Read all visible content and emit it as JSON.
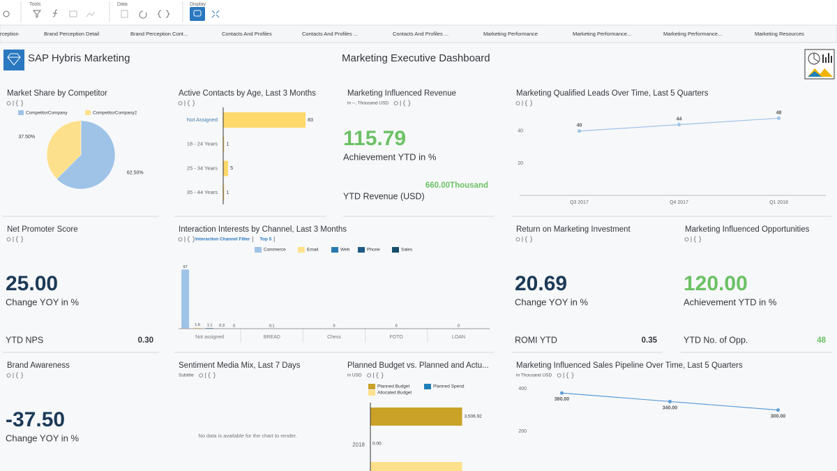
{
  "toolbar": {
    "groups": [
      "Tools",
      "Data",
      "Display"
    ]
  },
  "tabs": [
    "rception",
    "Brand Perception Detail",
    "Brand Perception Cont...",
    "Contacts And Profiles",
    "Contacts And Profiles ...",
    "Contacts And Profiles ...",
    "Marketing Performance",
    "Marketing Performance...",
    "Marketing Performance...",
    "Marketing Resources"
  ],
  "header": {
    "brand": "SAP Hybris Marketing",
    "title": "Marketing Executive Dashboard"
  },
  "tiles": [
    {
      "title": "Market Share by Competitor",
      "chart": {
        "type": "pie",
        "categories": [
          "CompetitorCompany",
          "CompetitorCompany2"
        ],
        "values": [
          62.5,
          37.5
        ],
        "value_labels": [
          "62.50%",
          "37.50%"
        ],
        "colors": [
          "#9fc3e7",
          "#fde08b"
        ]
      }
    },
    {
      "title": "Active Contacts by Age, Last 3 Months",
      "chart": {
        "type": "hbar",
        "categories": [
          "Not Assigned",
          "18 - 24 Years",
          "25 - 34 Years",
          "35 - 44 Years"
        ],
        "values": [
          83,
          1,
          5,
          1
        ],
        "color": "#fdd86b",
        "xlim": [
          0,
          85
        ]
      }
    },
    {
      "title": "Marketing Influenced Revenue",
      "subtitle": "in --, Thousand USD",
      "kpi": {
        "value": "115.79",
        "label": "Achievement YTD in %",
        "color": "#6cc165",
        "footer_label": "YTD Revenue (USD)",
        "footer_value": "660.00Thousand",
        "footer_color": "#6cc165"
      }
    },
    {
      "title": "Marketing Qualified Leads Over Time, Last 5 Quarters",
      "chart": {
        "type": "line",
        "categories": [
          "Q3 2017",
          "Q4 2017",
          "Q1 2018"
        ],
        "values": [
          40,
          44,
          48
        ],
        "color": "#9fc3e7",
        "ylim": [
          0,
          56
        ],
        "yticks": [
          20,
          40
        ]
      }
    },
    {
      "title": "Net Promoter Score",
      "kpi": {
        "value": "25.00",
        "label": "Change YOY in %",
        "color": "#1c3a57",
        "footer_label": "YTD NPS",
        "footer_value": "0.30",
        "footer_color": "#32363a"
      }
    },
    {
      "title": "Interaction Interests by Channel, Last 3 Months",
      "filters": [
        "Interaction Channel Filter",
        "Top 5"
      ],
      "chart": {
        "type": "groupbar",
        "categories": [
          "Not assigned",
          "BREAD",
          "Chess",
          "FOTO",
          "LOAN"
        ],
        "ylim": [
          0,
          110
        ],
        "series": [
          {
            "name": "Commerce",
            "color": "#9fc3e7",
            "values": [
              97,
              0.1,
              0,
              0,
              0
            ]
          },
          {
            "name": "Email",
            "color": "#fde08b",
            "values": [
              1.6,
              null,
              null,
              null,
              null
            ]
          },
          {
            "name": "Web",
            "color": "#2a7ab0",
            "values": [
              1.1,
              null,
              null,
              null,
              null
            ]
          },
          {
            "name": "Phone",
            "color": "#1e5a86",
            "values": [
              0.3,
              null,
              null,
              null,
              null
            ]
          },
          {
            "name": "Sales",
            "color": "#164e6b",
            "values": [
              0,
              null,
              null,
              null,
              null
            ]
          }
        ]
      }
    },
    {
      "title": "Return on Marketing Investment",
      "kpi": {
        "value": "20.69",
        "label": "Change YOY in %",
        "color": "#1c3a57",
        "footer_label": "ROMI YTD",
        "footer_value": "0.35",
        "footer_color": "#32363a"
      }
    },
    {
      "title": "Marketing Influenced Opportunities",
      "kpi": {
        "value": "120.00",
        "label": "Achievement YTD in %",
        "color": "#6cc165",
        "footer_label": "YTD No. of Opp.",
        "footer_value": "48",
        "footer_color": "#6cc165"
      }
    },
    {
      "title": "Brand Awareness",
      "kpi": {
        "value": "-37.50",
        "label": "Change YOY in %",
        "color": "#1c3a57"
      }
    },
    {
      "title": "Sentiment Media Mix, Last 7 Days",
      "subtitle": "Subtitle",
      "message": "No data is available for the chart to render."
    },
    {
      "title": "Planned Budget vs. Planned and Actu...",
      "subtitle": "in USD",
      "chart": {
        "type": "budget",
        "categories": [
          "2018"
        ],
        "xlim": [
          0,
          3600
        ],
        "series": [
          {
            "name": "Planned Budget",
            "color": "#c9a227",
            "values": [
              3506.92
            ],
            "value_labels": [
              "3,506.92"
            ]
          },
          {
            "name": "Planned Spend",
            "color": "#1f7fb8",
            "values": [
              0
            ],
            "value_labels": [
              "0.00"
            ]
          },
          {
            "name": "Allocated Budget",
            "color": "#fde08b",
            "values": [
              3506.92
            ],
            "value_labels": [
              null
            ]
          }
        ]
      }
    },
    {
      "title": "Marketing Influenced Sales Pipeline Over Time, Last 5 Quarters",
      "subtitle": "in Thousand USD",
      "chart": {
        "type": "line",
        "categories": [
          "Q3 2017",
          "Q4 2017",
          "Q1 2018"
        ],
        "values": [
          380,
          340,
          300
        ],
        "value_labels": [
          "380.00",
          "340.00",
          "300.00"
        ],
        "color": "#5b9bd5",
        "ylim": [
          0,
          440
        ],
        "yticks": [
          200,
          400
        ]
      }
    }
  ]
}
